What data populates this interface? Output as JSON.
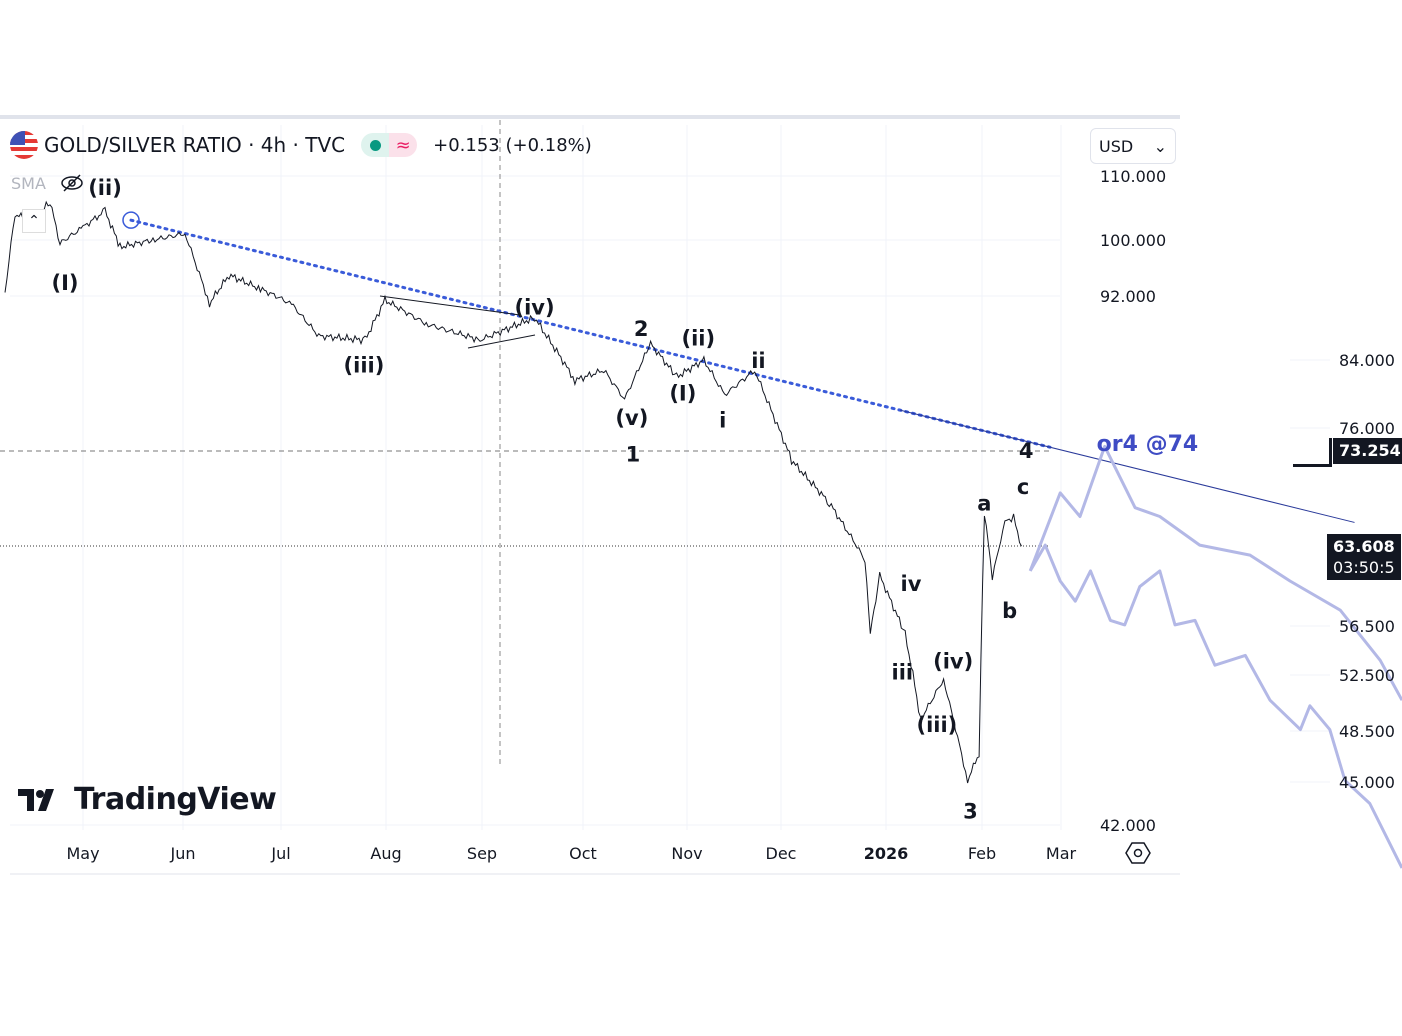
{
  "header": {
    "symbol": "GOLD/SILVER RATIO · 4h · TVC",
    "change": "+0.153 (+0.18%)",
    "indicator": "SMA",
    "currency": "USD"
  },
  "branding": {
    "logo": "TradingView"
  },
  "price_labels": {
    "level": "73.254",
    "last": "63.608",
    "countdown": "03:50:5"
  },
  "colors": {
    "price": "#131722",
    "projection": "#b3b8e6",
    "trend": "#3a5bd9",
    "annotation_blue": "#3f4cc4"
  },
  "chart_data": {
    "type": "line",
    "title": "GOLD/SILVER RATIO · 4h · TVC",
    "xlabel": "",
    "ylabel": "",
    "x_unit": "months since 2025-05-01",
    "x_ticks": [
      {
        "t": 0,
        "label": "May"
      },
      {
        "t": 1,
        "label": "Jun"
      },
      {
        "t": 2,
        "label": "Jul"
      },
      {
        "t": 3,
        "label": "Aug"
      },
      {
        "t": 4,
        "label": "Sep"
      },
      {
        "t": 5,
        "label": "Oct"
      },
      {
        "t": 6,
        "label": "Nov"
      },
      {
        "t": 7,
        "label": "Dec"
      },
      {
        "t": 8,
        "label": "2026"
      },
      {
        "t": 9,
        "label": "Feb"
      },
      {
        "t": 10,
        "label": "Mar"
      }
    ],
    "y_ticks_left": [
      "110.000",
      "100.000",
      "92.000",
      "42.000"
    ],
    "y_ticks_right": [
      "84.000",
      "76.000",
      "56.500",
      "52.500",
      "48.500",
      "45.000"
    ],
    "ylim": [
      42,
      110
    ],
    "grid": true,
    "series": [
      {
        "name": "price",
        "points": [
          [
            -0.78,
            92.5
          ],
          [
            -0.68,
            104
          ],
          [
            -0.5,
            103
          ],
          [
            -0.33,
            106
          ],
          [
            -0.23,
            99.5
          ],
          [
            0.0,
            102
          ],
          [
            0.22,
            104.5
          ],
          [
            0.37,
            99
          ],
          [
            0.7,
            100
          ],
          [
            1.02,
            101
          ],
          [
            1.27,
            91
          ],
          [
            1.47,
            95
          ],
          [
            1.79,
            93
          ],
          [
            2.1,
            91
          ],
          [
            2.36,
            87
          ],
          [
            2.8,
            86.5
          ],
          [
            2.99,
            91.5
          ],
          [
            3.42,
            88.5
          ],
          [
            3.98,
            86.5
          ],
          [
            4.52,
            89.3
          ],
          [
            4.92,
            81.6
          ],
          [
            5.2,
            82.8
          ],
          [
            5.4,
            79.4
          ],
          [
            5.65,
            86
          ],
          [
            5.9,
            82
          ],
          [
            6.18,
            84
          ],
          [
            6.4,
            79.9
          ],
          [
            6.72,
            82.8
          ],
          [
            7.1,
            72.3
          ],
          [
            7.46,
            68
          ],
          [
            7.8,
            62.3
          ],
          [
            7.85,
            55.8
          ],
          [
            7.94,
            61
          ],
          [
            8.2,
            55.8
          ],
          [
            8.36,
            49.3
          ],
          [
            8.6,
            52.2
          ],
          [
            8.85,
            45.1
          ],
          [
            8.97,
            47
          ],
          [
            9.03,
            67
          ],
          [
            9.13,
            60.7
          ],
          [
            9.29,
            66
          ],
          [
            9.4,
            66.5
          ],
          [
            9.5,
            63.6
          ]
        ]
      },
      {
        "name": "projection-a",
        "points": [
          [
            9.61,
            61.4
          ],
          [
            9.99,
            69
          ],
          [
            10.2,
            66.6
          ],
          [
            10.46,
            73.8
          ],
          [
            10.78,
            67.5
          ],
          [
            11.04,
            66.6
          ],
          [
            11.46,
            63.7
          ],
          [
            11.99,
            62.8
          ],
          [
            12.41,
            60.5
          ],
          [
            12.94,
            57.9
          ],
          [
            13.36,
            53.7
          ],
          [
            13.59,
            50.7
          ]
        ]
      },
      {
        "name": "projection-b",
        "points": [
          [
            9.61,
            61.4
          ],
          [
            9.8,
            63.7
          ],
          [
            9.99,
            60.5
          ],
          [
            10.15,
            58.7
          ],
          [
            10.31,
            61.4
          ],
          [
            10.52,
            57
          ],
          [
            10.67,
            56.6
          ],
          [
            10.83,
            60
          ],
          [
            11.04,
            61.4
          ],
          [
            11.2,
            56.6
          ],
          [
            11.41,
            57
          ],
          [
            11.62,
            53.3
          ],
          [
            11.94,
            54.1
          ],
          [
            12.2,
            50.7
          ],
          [
            12.52,
            48.6
          ],
          [
            12.62,
            50.3
          ],
          [
            12.83,
            48.6
          ],
          [
            12.99,
            45.1
          ],
          [
            13.25,
            43.5
          ],
          [
            13.59,
            39
          ]
        ]
      }
    ],
    "trendline": {
      "from": [
        0.48,
        103.1
      ],
      "to": [
        13.09,
        66
      ]
    },
    "horizontal_levels": [
      73.254,
      63.608
    ],
    "wave_labels": [
      {
        "text": "(ii)",
        "t": 0.22,
        "v": 108.3
      },
      {
        "text": "(I)",
        "t": -0.18,
        "v": 94
      },
      {
        "text": "(iii)",
        "t": 2.79,
        "v": 83.5
      },
      {
        "text": "(iv)",
        "t": 4.52,
        "v": 90.7
      },
      {
        "text": "2",
        "t": 5.56,
        "v": 88
      },
      {
        "text": "(ii)",
        "t": 6.12,
        "v": 86.8
      },
      {
        "text": "(I)",
        "t": 5.96,
        "v": 80.2
      },
      {
        "text": "(v)",
        "t": 5.47,
        "v": 77.3
      },
      {
        "text": "1",
        "t": 5.48,
        "v": 73
      },
      {
        "text": "i",
        "t": 6.38,
        "v": 77
      },
      {
        "text": "ii",
        "t": 6.76,
        "v": 84
      },
      {
        "text": "4",
        "t": 9.56,
        "v": 73.4
      },
      {
        "text": "a",
        "t": 9.03,
        "v": 68
      },
      {
        "text": "c",
        "t": 9.52,
        "v": 69.7
      },
      {
        "text": "b",
        "t": 9.35,
        "v": 57.9
      },
      {
        "text": "iv",
        "t": 8.26,
        "v": 60.3
      },
      {
        "text": "iii",
        "t": 8.17,
        "v": 52.8
      },
      {
        "text": "(iv)",
        "t": 8.7,
        "v": 53.7
      },
      {
        "text": "(iii)",
        "t": 8.53,
        "v": 49
      },
      {
        "text": "3",
        "t": 8.88,
        "v": 43
      }
    ],
    "target_annotation": {
      "text": "or4 @74",
      "t": 10.91,
      "v": 74.2
    }
  }
}
